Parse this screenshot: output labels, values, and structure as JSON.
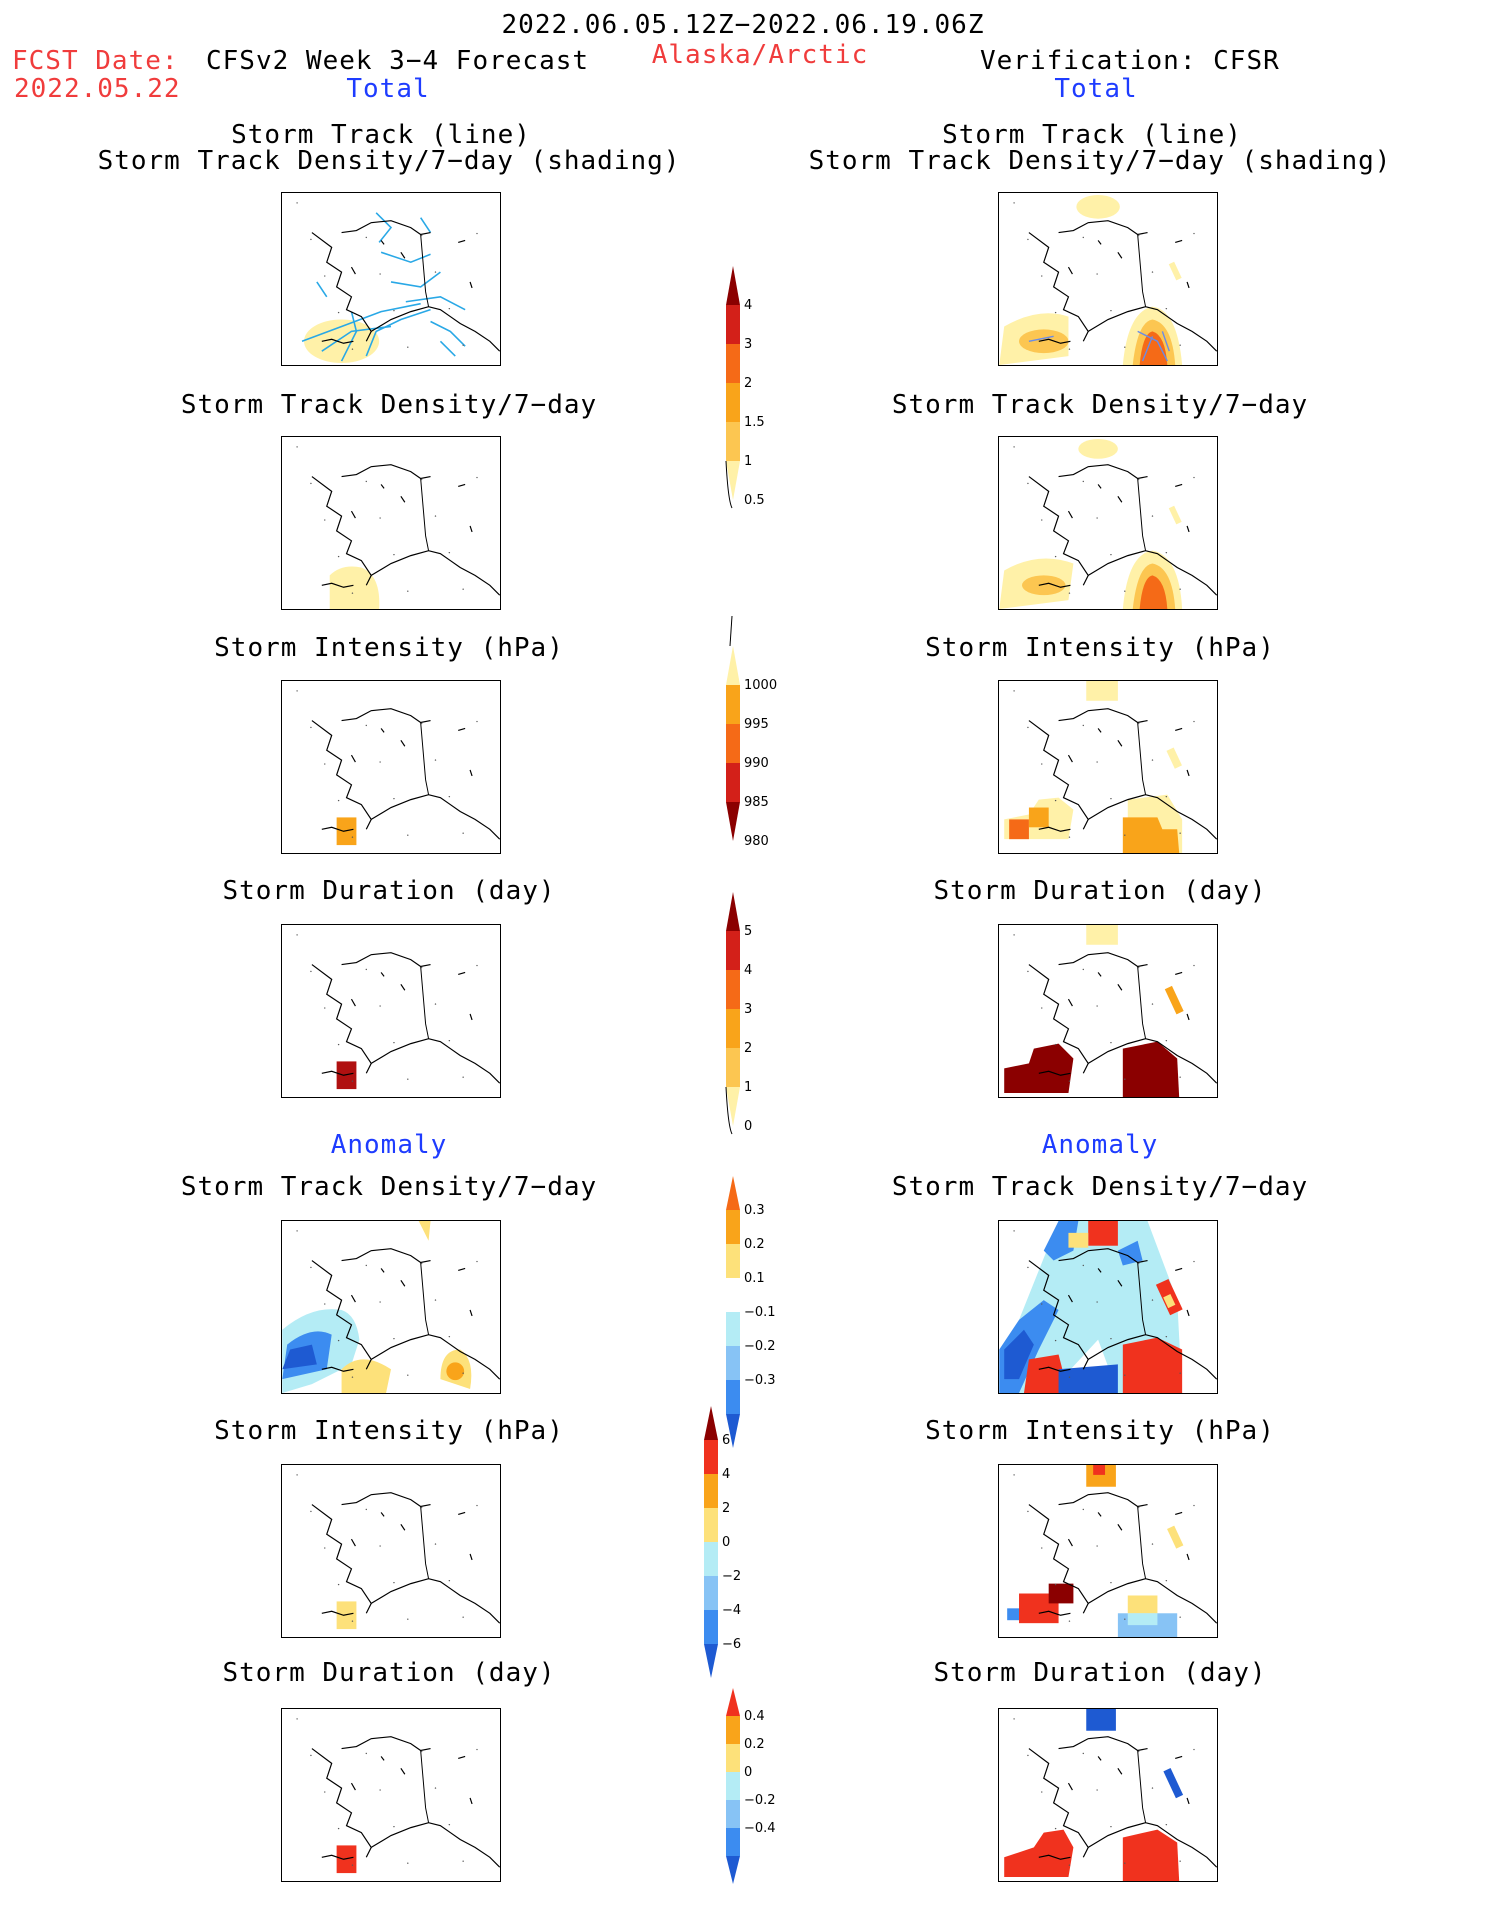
{
  "header": {
    "period": "2022.06.05.12Z−2022.06.19.06Z",
    "fcst_label": "FCST Date:",
    "fcst_date": "2022.05.22",
    "model": "CFSv2 Week 3−4 Forecast",
    "region": "Alaska/Arctic",
    "verification": "Verification: CFSR"
  },
  "sections": {
    "total": "Total",
    "anomaly": "Anomaly"
  },
  "panels": {
    "track_line": "Storm Track (line)",
    "track_shading": "Storm Track Density/7−day (shading)",
    "density": "Storm Track Density/7−day",
    "intensity": "Storm Intensity (hPa)",
    "duration": "Storm Duration (day)"
  },
  "colorbars": {
    "density_total": {
      "labels": [
        "4",
        "3",
        "2",
        "1.5",
        "1",
        "0.5"
      ],
      "colors": [
        "#8b0000",
        "#d32019",
        "#f56a17",
        "#f9a41a",
        "#fcc651",
        "#fff1a8"
      ]
    },
    "intensity_total": {
      "labels": [
        "1000",
        "995",
        "990",
        "985",
        "980"
      ],
      "colors": [
        "#fff1a8",
        "#f9a41a",
        "#f56a17",
        "#d32019",
        "#8b0000"
      ]
    },
    "duration_total": {
      "labels": [
        "5",
        "4",
        "3",
        "2",
        "1",
        "0"
      ],
      "colors": [
        "#8b0000",
        "#d32019",
        "#f56a17",
        "#f9a41a",
        "#fcc651",
        "#fff1a8"
      ]
    },
    "density_anom": {
      "labels": [
        "0.3",
        "0.2",
        "0.1",
        "−0.1",
        "−0.2",
        "−0.3"
      ],
      "colors": [
        "#f56a17",
        "#f9a41a",
        "#fde17a",
        "#ffffff",
        "#b4ecf5",
        "#87c3f5",
        "#3c8cf0",
        "#1e5ad2"
      ]
    },
    "intensity_anom": {
      "labels": [
        "6",
        "4",
        "2",
        "0",
        "−2",
        "−4",
        "−6"
      ],
      "colors": [
        "#8b0000",
        "#f0321e",
        "#f9a41a",
        "#fde17a",
        "#b4ecf5",
        "#87c3f5",
        "#3c8cf0",
        "#1e5ad2"
      ]
    },
    "duration_anom": {
      "labels": [
        "0.4",
        "0.2",
        "0",
        "−0.2",
        "−0.4"
      ],
      "colors": [
        "#f0321e",
        "#f9a41a",
        "#fde17a",
        "#b4ecf5",
        "#87c3f5",
        "#3c8cf0",
        "#1e5ad2"
      ]
    }
  },
  "colors": {
    "red_text": "#f03c3c",
    "blue_text": "#1e3cff",
    "track_line": "#29a8e6"
  }
}
